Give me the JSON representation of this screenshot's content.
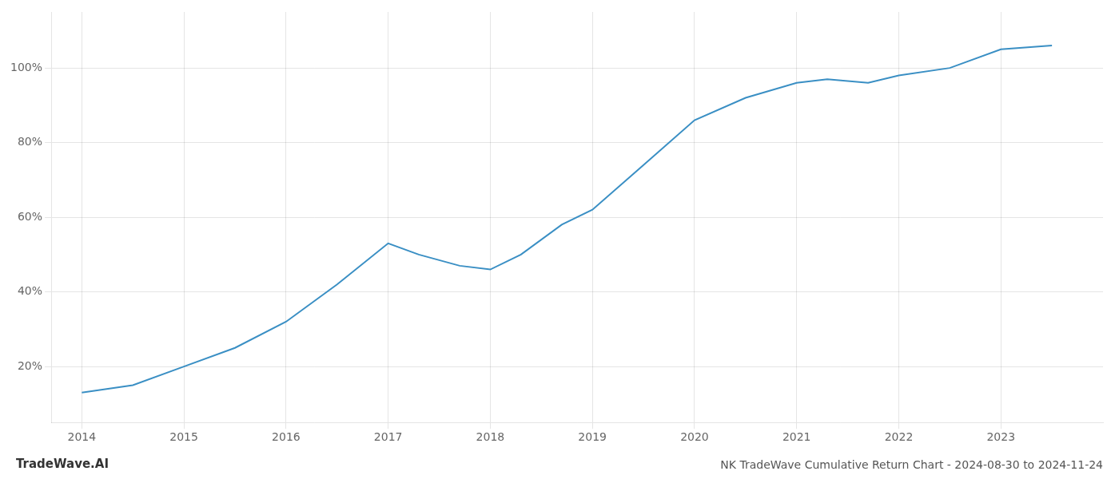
{
  "chart_data": {
    "type": "line",
    "title": "NK TradeWave Cumulative Return Chart - 2024-08-30 to 2024-11-24",
    "annotations": [
      "TradeWave.AI"
    ],
    "x": [
      2014,
      2014.5,
      2015,
      2015.5,
      2016,
      2016.5,
      2017,
      2017.3,
      2017.7,
      2018,
      2018.3,
      2018.7,
      2019,
      2019.5,
      2020,
      2020.5,
      2021,
      2021.3,
      2021.7,
      2022,
      2022.5,
      2023,
      2023.5
    ],
    "values": [
      13,
      15,
      20,
      25,
      32,
      42,
      53,
      50,
      47,
      46,
      50,
      58,
      62,
      74,
      86,
      92,
      96,
      97,
      96,
      98,
      100,
      105,
      106
    ],
    "color": "#3a8fc4",
    "marker": "none",
    "xlim": [
      2013.7,
      2024.0
    ],
    "ylim": [
      5,
      115
    ],
    "xticks": [
      2014,
      2015,
      2016,
      2017,
      2018,
      2019,
      2020,
      2021,
      2022,
      2023
    ],
    "yticks": [
      {
        "value": 20,
        "label": "20%"
      },
      {
        "value": 40,
        "label": "40%"
      },
      {
        "value": 60,
        "label": "60%"
      },
      {
        "value": 80,
        "label": "80%"
      },
      {
        "value": 100,
        "label": "100%"
      }
    ],
    "grid": true
  }
}
